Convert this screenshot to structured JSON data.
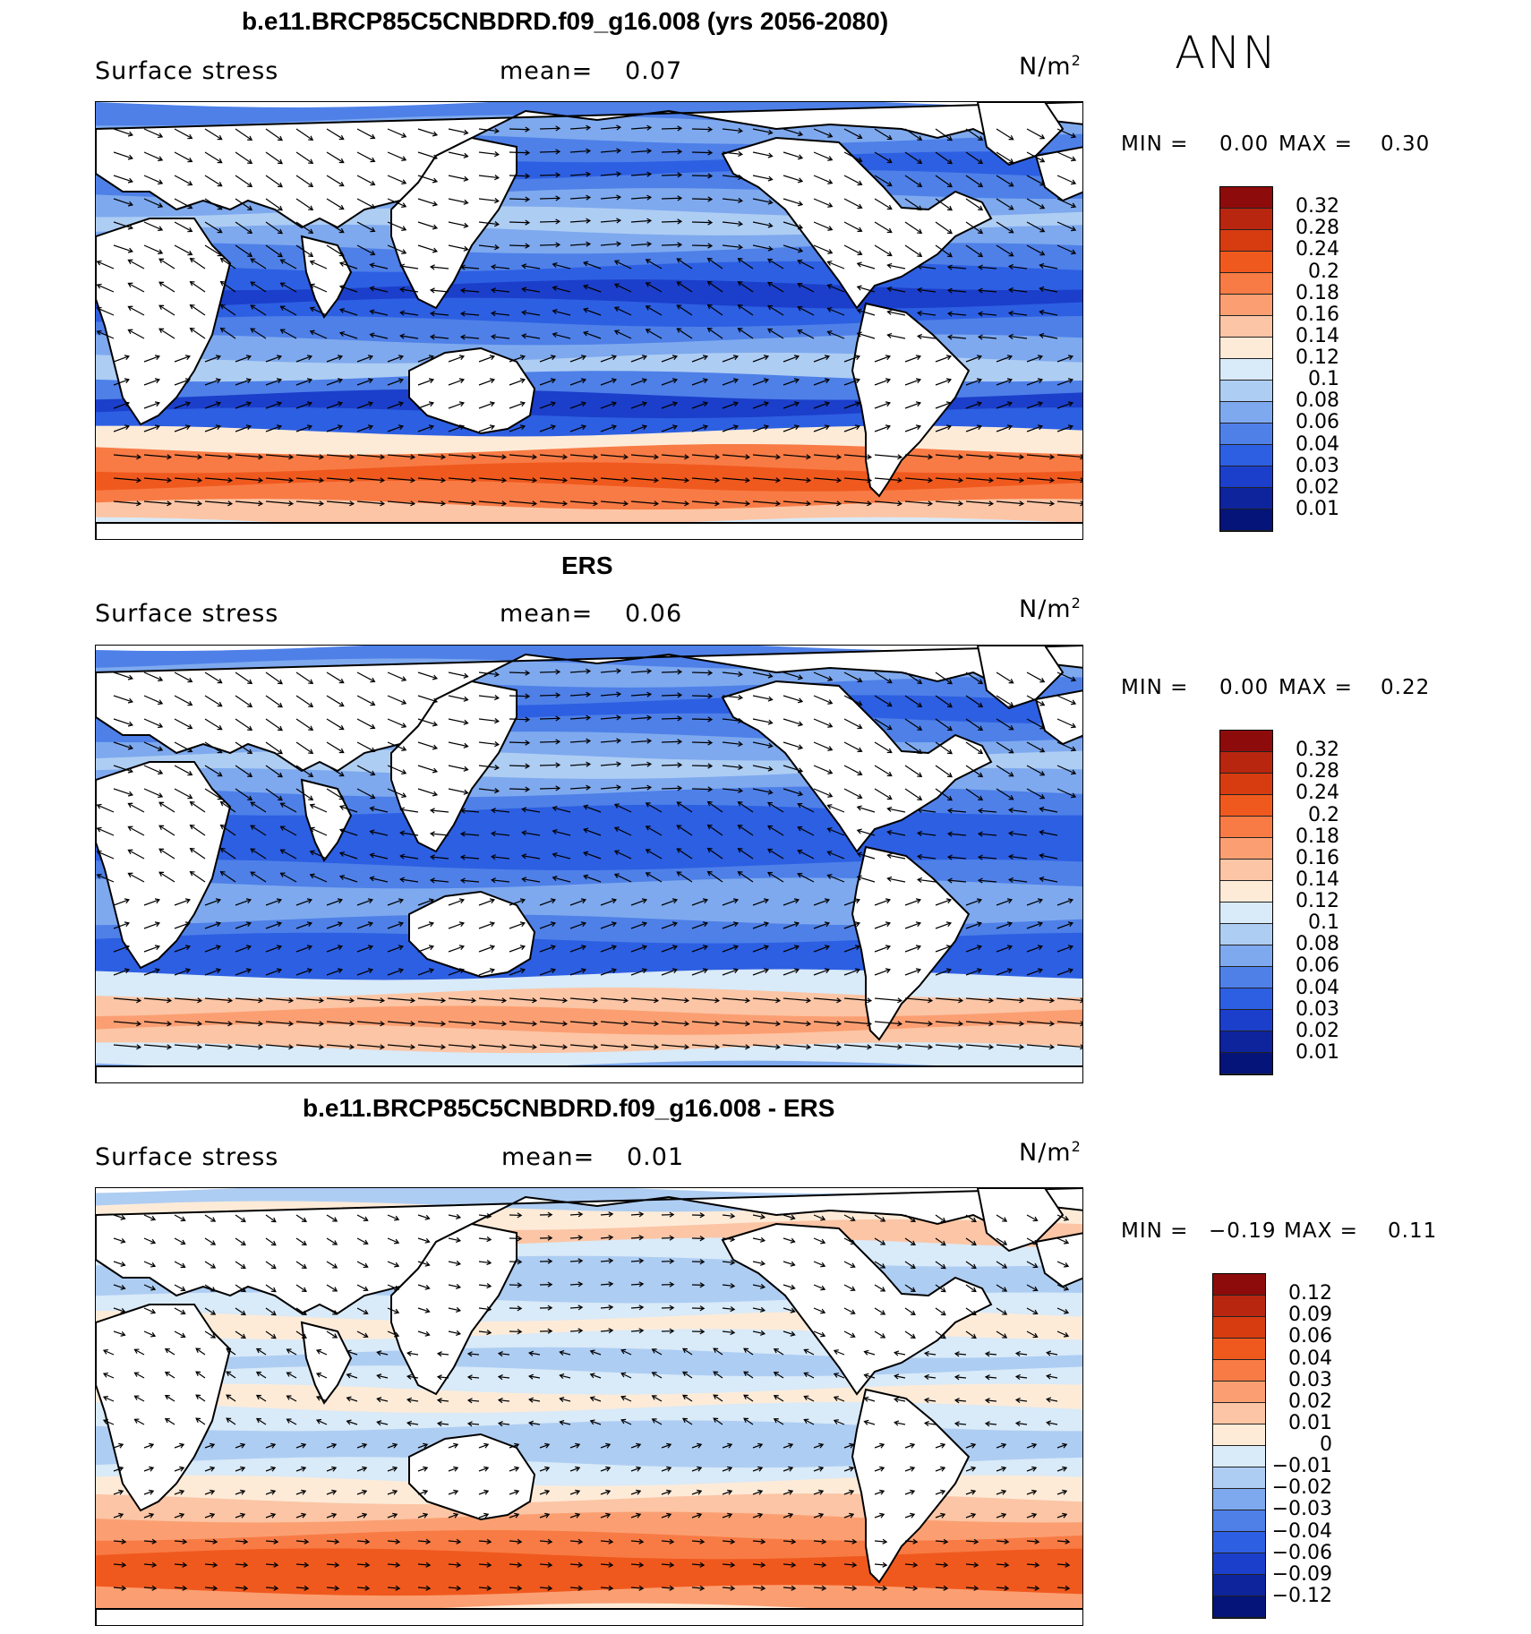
{
  "season": "ANN",
  "variable": "Surface stress",
  "units_base": "N/m",
  "units_exp": "2",
  "mean_label": "mean=",
  "min_label": "MIN =",
  "max_label": "MAX =",
  "panels": [
    {
      "title": "b.e11.BRCP85C5CNBDRD.f09_g16.008 (yrs 2056-2080)",
      "mean": "0.07",
      "min": "0.00",
      "max": "0.30",
      "legend": [
        "0.32",
        "0.28",
        "0.24",
        "0.2",
        "0.18",
        "0.16",
        "0.14",
        "0.12",
        "0.1",
        "0.08",
        "0.06",
        "0.04",
        "0.03",
        "0.02",
        "0.01"
      ],
      "legend_colors": [
        "#8e0b0b",
        "#b8260f",
        "#d73c10",
        "#f0591e",
        "#f87b45",
        "#fb9f72",
        "#fcc5a5",
        "#fdebd8",
        "#d9eaf8",
        "#aecdf3",
        "#7ea9ee",
        "#4e80e8",
        "#2d5fe2",
        "#1b3fca",
        "#0d249d",
        "#041478"
      ]
    },
    {
      "title": "ERS",
      "mean": "0.06",
      "min": "0.00",
      "max": "0.22",
      "legend": [
        "0.32",
        "0.28",
        "0.24",
        "0.2",
        "0.18",
        "0.16",
        "0.14",
        "0.12",
        "0.1",
        "0.08",
        "0.06",
        "0.04",
        "0.03",
        "0.02",
        "0.01"
      ],
      "legend_colors": [
        "#8e0b0b",
        "#b8260f",
        "#d73c10",
        "#f0591e",
        "#f87b45",
        "#fb9f72",
        "#fcc5a5",
        "#fdebd8",
        "#d9eaf8",
        "#aecdf3",
        "#7ea9ee",
        "#4e80e8",
        "#2d5fe2",
        "#1b3fca",
        "#0d249d",
        "#041478"
      ]
    },
    {
      "title": "b.e11.BRCP85C5CNBDRD.f09_g16.008 - ERS",
      "mean": "0.01",
      "min": "−0.19",
      "max": "0.11",
      "legend": [
        "0.12",
        "0.09",
        "0.06",
        "0.04",
        "0.03",
        "0.02",
        "0.01",
        "0",
        "−0.01",
        "−0.02",
        "−0.03",
        "−0.04",
        "−0.06",
        "−0.09",
        "−0.12"
      ],
      "legend_colors": [
        "#8e0b0b",
        "#b8260f",
        "#d73c10",
        "#f0591e",
        "#f87b45",
        "#fb9f72",
        "#fcc5a5",
        "#fdebd8",
        "#d9eaf8",
        "#aecdf3",
        "#7ea9ee",
        "#4e80e8",
        "#2d5fe2",
        "#1b3fca",
        "#0d249d",
        "#041478"
      ]
    }
  ],
  "chart_data": [
    {
      "type": "heatmap",
      "title": "b.e11.BRCP85C5CNBDRD.f09_g16.008 (yrs 2056-2080)",
      "field": "Surface stress",
      "units": "N/m2",
      "mean": 0.07,
      "min": 0.0,
      "max": 0.3,
      "contour_levels": [
        0.01,
        0.02,
        0.03,
        0.04,
        0.06,
        0.08,
        0.1,
        0.12,
        0.14,
        0.16,
        0.18,
        0.2,
        0.24,
        0.28,
        0.32
      ],
      "overlay": "wind stress vectors",
      "projection": "global cylindrical equidistant, Pacific-centered"
    },
    {
      "type": "heatmap",
      "title": "ERS",
      "field": "Surface stress",
      "units": "N/m2",
      "mean": 0.06,
      "min": 0.0,
      "max": 0.22,
      "contour_levels": [
        0.01,
        0.02,
        0.03,
        0.04,
        0.06,
        0.08,
        0.1,
        0.12,
        0.14,
        0.16,
        0.18,
        0.2,
        0.24,
        0.28,
        0.32
      ],
      "overlay": "wind stress vectors",
      "projection": "global cylindrical equidistant, Pacific-centered"
    },
    {
      "type": "heatmap",
      "title": "b.e11.BRCP85C5CNBDRD.f09_g16.008 - ERS",
      "field": "Surface stress",
      "units": "N/m2",
      "mean": 0.01,
      "min": -0.19,
      "max": 0.11,
      "contour_levels": [
        -0.12,
        -0.09,
        -0.06,
        -0.04,
        -0.03,
        -0.02,
        -0.01,
        0,
        0.01,
        0.02,
        0.03,
        0.04,
        0.06,
        0.09,
        0.12
      ],
      "overlay": "wind stress difference vectors",
      "projection": "global cylindrical equidistant, Pacific-centered"
    }
  ]
}
